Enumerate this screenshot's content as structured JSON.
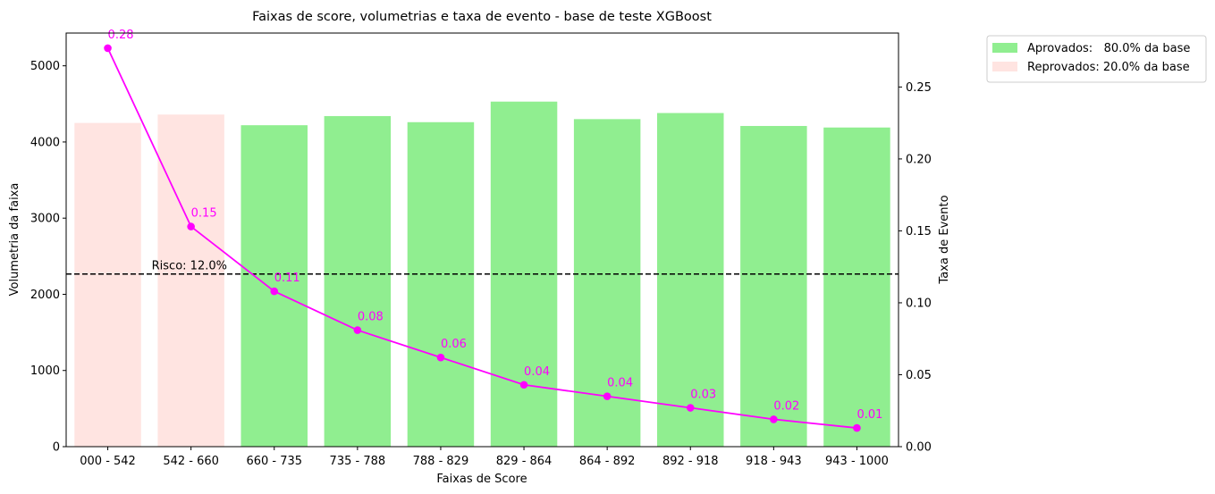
{
  "chart_data": {
    "type": "bar",
    "title": "Faixas de score, volumetrias e taxa de evento - base de teste XGBoost",
    "xlabel": "Faixas de Score",
    "ylabel": "Volumetria da faixa",
    "y2label": "Taxa de Evento",
    "categories": [
      "000 - 542",
      "542 - 660",
      "660 - 735",
      "735 - 788",
      "788 - 829",
      "829 - 864",
      "864 - 892",
      "892 - 918",
      "918 - 943",
      "943 - 1000"
    ],
    "ylim": [
      0,
      5430
    ],
    "yticks": [
      0,
      1000,
      2000,
      3000,
      4000,
      5000
    ],
    "y2lim": [
      0,
      0.2875
    ],
    "y2ticks": [
      "0.00",
      "0.05",
      "0.10",
      "0.15",
      "0.20",
      "0.25"
    ],
    "grid": false,
    "legend_position": "outside-top-right",
    "series": [
      {
        "name": "Volumetria",
        "type": "bar",
        "axis": "left",
        "values": [
          4250,
          4360,
          4220,
          4340,
          4260,
          4530,
          4300,
          4380,
          4210,
          4190
        ],
        "group": [
          "reprovados",
          "reprovados",
          "aprovados",
          "aprovados",
          "aprovados",
          "aprovados",
          "aprovados",
          "aprovados",
          "aprovados",
          "aprovados"
        ]
      },
      {
        "name": "Taxa de Evento",
        "type": "line",
        "axis": "right",
        "values": [
          0.277,
          0.153,
          0.108,
          0.081,
          0.062,
          0.043,
          0.035,
          0.027,
          0.019,
          0.013
        ],
        "labels": [
          "0.28",
          "0.15",
          "0.11",
          "0.08",
          "0.06",
          "0.04",
          "0.04",
          "0.03",
          "0.02",
          "0.01"
        ],
        "color": "#ff00ff"
      }
    ],
    "reference_line": {
      "axis": "right",
      "value": 0.12,
      "label": "Risco: 12.0%",
      "style": "dashed",
      "color": "#000000"
    },
    "legend": [
      {
        "key": "aprovados",
        "label": "Aprovados:   80.0% da base",
        "color": "#90ee90"
      },
      {
        "key": "reprovados",
        "label": "Reprovados: 20.0% da base",
        "color": "#ffe4e1"
      }
    ]
  }
}
